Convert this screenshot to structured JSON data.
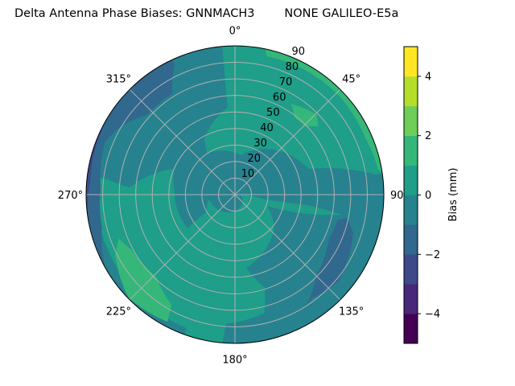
{
  "chart_data": {
    "type": "polar-contour",
    "title": "Delta Antenna Phase Biases: GNNMACH3        NONE GALILEO-E5a",
    "angle_ticks": [
      "0°",
      "45°",
      "90°",
      "135°",
      "180°",
      "225°",
      "270°",
      "315°"
    ],
    "angle_tick_values": [
      0,
      45,
      90,
      135,
      180,
      225,
      270,
      315
    ],
    "radial_ticks": [
      "10",
      "20",
      "30",
      "40",
      "50",
      "60",
      "70",
      "80",
      "90"
    ],
    "radial_tick_values": [
      10,
      20,
      30,
      40,
      50,
      60,
      70,
      80,
      90
    ],
    "rlim": [
      0,
      90
    ],
    "theta_zero": "north",
    "theta_direction": "clockwise",
    "grid": true,
    "colorbar": {
      "label": "Bias (mm)",
      "range": [
        -5,
        5
      ],
      "levels": [
        -5,
        -4,
        -3,
        -2,
        -1,
        0,
        1,
        2,
        3,
        4,
        5
      ],
      "colors": [
        "#440154",
        "#482878",
        "#3e4989",
        "#31688e",
        "#26828e",
        "#1f9e89",
        "#35b779",
        "#6ece58",
        "#b5de2b",
        "#fde725"
      ],
      "ticks": [
        "−4",
        "−2",
        "0",
        "2",
        "4"
      ],
      "tick_values": [
        -4,
        -2,
        0,
        2,
        4
      ]
    },
    "background_level": [
      0,
      1
    ],
    "regions": [
      {
        "level": [
          -1,
          0
        ],
        "points": [
          [
            355,
            95
          ],
          [
            355,
            53
          ],
          [
            331,
            38.5
          ],
          [
            326,
            30
          ],
          [
            9,
            24
          ],
          [
            71,
            47
          ],
          [
            82,
            86
          ],
          [
            82,
            95
          ],
          [
            100,
            95
          ],
          [
            103,
            89
          ],
          [
            101,
            70
          ],
          [
            98,
            43
          ],
          [
            99,
            18.5
          ],
          [
            90,
            3
          ],
          [
            261,
            16
          ],
          [
            239,
            20
          ],
          [
            235,
            35
          ],
          [
            274,
            36.5
          ],
          [
            293,
            40
          ],
          [
            274,
            64
          ],
          [
            277,
            78
          ],
          [
            278,
            95
          ],
          [
            355,
            95
          ]
        ]
      },
      {
        "level": [
          -1,
          0
        ],
        "points": [
          [
            95,
            95
          ],
          [
            100,
            70
          ],
          [
            110,
            21
          ],
          [
            130,
            31
          ],
          [
            171,
            45
          ],
          [
            162,
            59
          ],
          [
            166,
            74
          ],
          [
            184,
            78.5
          ],
          [
            185,
            95
          ],
          [
            95,
            95
          ]
        ]
      },
      {
        "level": [
          -1,
          0
        ],
        "points": [
          [
            200,
            95
          ],
          [
            200,
            86
          ],
          [
            240,
            84
          ],
          [
            280,
            84
          ],
          [
            280,
            95
          ],
          [
            200,
            95
          ]
        ]
      },
      {
        "level": [
          -2,
          -1
        ],
        "points": [
          [
            335,
            95
          ],
          [
            335,
            87
          ],
          [
            328,
            72
          ],
          [
            312,
            72
          ],
          [
            301,
            80.5
          ],
          [
            292,
            85
          ],
          [
            273,
            81.5
          ],
          [
            256,
            83
          ],
          [
            241,
            90
          ],
          [
            241,
            95
          ],
          [
            335,
            95
          ]
        ]
      },
      {
        "level": [
          -2,
          -1
        ],
        "points": [
          [
            102,
            69
          ],
          [
            108,
            75
          ],
          [
            130,
            81.5
          ],
          [
            143,
            78
          ],
          [
            146,
            79
          ],
          [
            135,
            69.5
          ],
          [
            115,
            63
          ],
          [
            104,
            64
          ],
          [
            102,
            69
          ]
        ]
      },
      {
        "level": [
          -3,
          -2
        ],
        "points": [
          [
            250,
            95
          ],
          [
            255,
            91
          ],
          [
            275,
            88
          ],
          [
            300,
            90
          ],
          [
            305,
            95
          ],
          [
            250,
            95
          ]
        ]
      },
      {
        "level": [
          1,
          2
        ],
        "points": [
          [
            10,
            95
          ],
          [
            13,
            86
          ],
          [
            46,
            87
          ],
          [
            66,
            86
          ],
          [
            80,
            88
          ],
          [
            85,
            95
          ],
          [
            10,
            95
          ]
        ]
      },
      {
        "level": [
          1,
          2
        ],
        "points": [
          [
            32,
            64.5
          ],
          [
            45.6,
            69
          ],
          [
            50.5,
            65
          ],
          [
            46,
            59.5
          ],
          [
            38,
            59
          ],
          [
            32,
            64.5
          ]
        ]
      },
      {
        "level": [
          1,
          2
        ],
        "points": [
          [
            249,
            75
          ],
          [
            242,
            71
          ],
          [
            224,
            69
          ],
          [
            210,
            77
          ],
          [
            208,
            87
          ],
          [
            226,
            89.5
          ],
          [
            243,
            81
          ],
          [
            249,
            75
          ]
        ]
      },
      {
        "level": [
          2,
          3
        ],
        "points": [
          [
            12,
            95
          ],
          [
            17,
            91
          ],
          [
            42,
            91.5
          ],
          [
            42,
            95
          ],
          [
            12,
            95
          ]
        ]
      }
    ]
  }
}
